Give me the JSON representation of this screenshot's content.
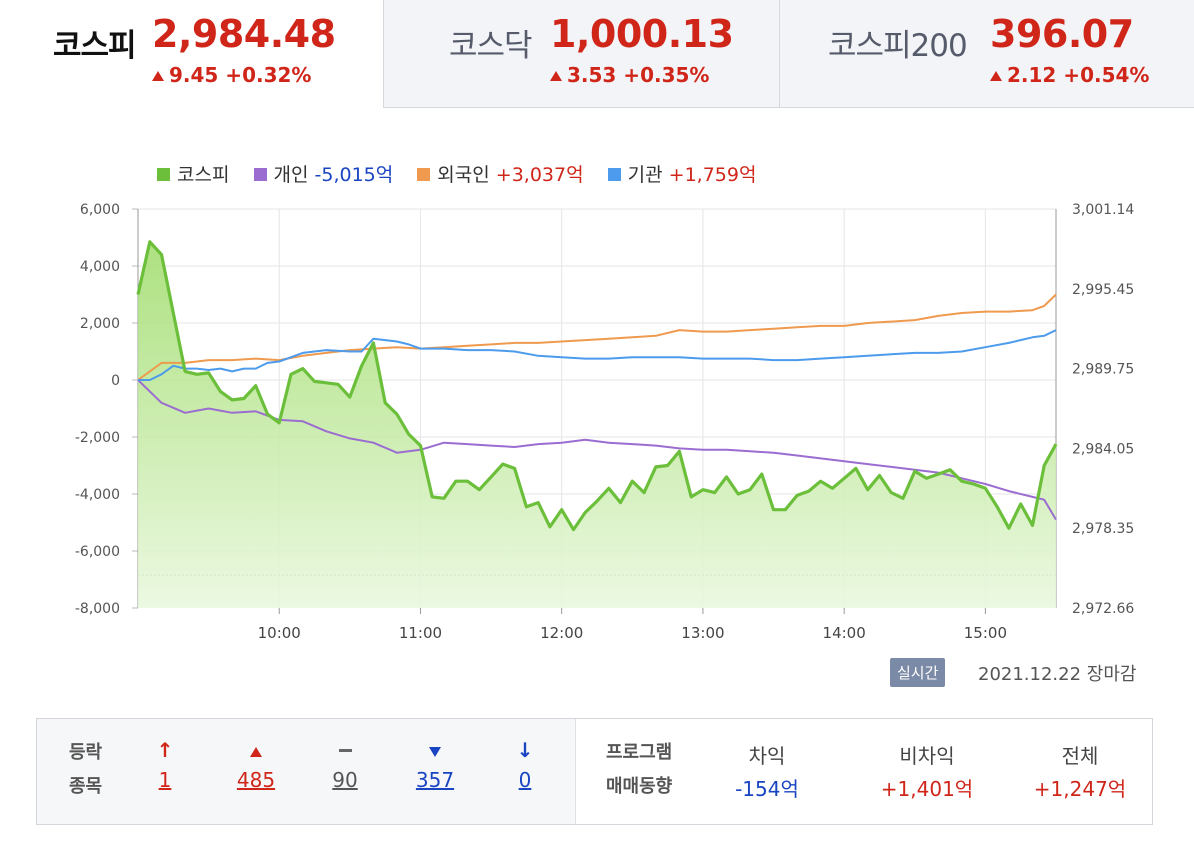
{
  "tabs": [
    {
      "name": "코스피",
      "value": "2,984.48",
      "change": "9.45 +0.32%"
    },
    {
      "name": "코스닥",
      "value": "1,000.13",
      "change": "3.53 +0.35%"
    },
    {
      "name": "코스피200",
      "value": "396.07",
      "change": "2.12 +0.54%"
    }
  ],
  "legend": [
    {
      "name": "코스피",
      "value": "",
      "color": "#6bbf3a"
    },
    {
      "name": "개인",
      "value": "-5,015억",
      "color": "#9b6dd1"
    },
    {
      "name": "외국인",
      "value": "+3,037억",
      "color": "#ef9a4e"
    },
    {
      "name": "기관",
      "value": "+1,759억",
      "color": "#4d9bec"
    }
  ],
  "chart_data": {
    "type": "line",
    "x_range": [
      "09:00",
      "15:30"
    ],
    "x_ticks": [
      "10:00",
      "11:00",
      "12:00",
      "13:00",
      "14:00",
      "15:00"
    ],
    "left_axis": {
      "ylim": [
        -8000,
        6000
      ],
      "ticks": [
        "6,000",
        "4,000",
        "2,000",
        "0",
        "-2,000",
        "-4,000",
        "-6,000",
        "-8,000"
      ]
    },
    "right_axis": {
      "ylim": [
        2972.66,
        3001.14
      ],
      "ticks": [
        "3,001.14",
        "2,995.45",
        "2,989.75",
        "2,984.05",
        "2,978.35",
        "2,972.66"
      ]
    },
    "reference_line_left": -6850,
    "series": [
      {
        "name": "코스피",
        "axis": "left",
        "color": "#6bbf3a",
        "fill": true,
        "x": [
          0,
          5,
          10,
          20,
          25,
          30,
          35,
          40,
          45,
          50,
          55,
          60,
          65,
          70,
          75,
          80,
          85,
          90,
          95,
          100,
          105,
          110,
          115,
          120,
          125,
          130,
          135,
          140,
          145,
          150,
          155,
          160,
          165,
          170,
          175,
          180,
          185,
          190,
          195,
          200,
          205,
          210,
          215,
          220,
          225,
          230,
          235,
          240,
          245,
          250,
          255,
          260,
          265,
          270,
          275,
          280,
          285,
          290,
          295,
          300,
          305,
          310,
          315,
          320,
          325,
          330,
          335,
          340,
          345,
          350,
          355,
          360,
          365,
          370,
          375,
          380,
          385,
          390
        ],
        "values": [
          3000,
          4850,
          4400,
          300,
          200,
          250,
          -400,
          -700,
          -650,
          -200,
          -1200,
          -1500,
          200,
          400,
          -50,
          -100,
          -150,
          -600,
          500,
          1300,
          -800,
          -1200,
          -1900,
          -2300,
          -4100,
          -4150,
          -3550,
          -3550,
          -3850,
          -3400,
          -2950,
          -3100,
          -4450,
          -4300,
          -5150,
          -4550,
          -5250,
          -4650,
          -4250,
          -3800,
          -4300,
          -3550,
          -3950,
          -3050,
          -3000,
          -2500,
          -4100,
          -3850,
          -3950,
          -3400,
          -4000,
          -3850,
          -3300,
          -4550,
          -4550,
          -4050,
          -3900,
          -3550,
          -3800,
          -3450,
          -3100,
          -3850,
          -3350,
          -3950,
          -4150,
          -3200,
          -3450,
          -3300,
          -3150,
          -3550,
          -3650,
          -3800,
          -4450,
          -5200,
          -4350,
          -5100,
          -3000,
          -2250
        ]
      },
      {
        "name": "개인",
        "axis": "left",
        "color": "#9b6dd1",
        "fill": false,
        "x": [
          0,
          10,
          20,
          30,
          40,
          50,
          60,
          70,
          80,
          90,
          100,
          110,
          120,
          130,
          140,
          150,
          160,
          170,
          180,
          190,
          200,
          210,
          220,
          230,
          240,
          250,
          260,
          270,
          280,
          290,
          300,
          310,
          320,
          330,
          340,
          350,
          360,
          370,
          380,
          385,
          390
        ],
        "values": [
          0,
          -800,
          -1150,
          -1000,
          -1150,
          -1100,
          -1400,
          -1450,
          -1800,
          -2050,
          -2200,
          -2550,
          -2450,
          -2200,
          -2250,
          -2300,
          -2350,
          -2250,
          -2200,
          -2100,
          -2200,
          -2250,
          -2300,
          -2400,
          -2450,
          -2450,
          -2500,
          -2550,
          -2650,
          -2750,
          -2850,
          -2950,
          -3050,
          -3150,
          -3250,
          -3450,
          -3650,
          -3900,
          -4100,
          -4200,
          -4900
        ]
      },
      {
        "name": "외국인",
        "axis": "left",
        "color": "#ef9a4e",
        "fill": false,
        "x": [
          0,
          10,
          20,
          30,
          40,
          50,
          60,
          70,
          80,
          90,
          100,
          110,
          120,
          130,
          140,
          150,
          160,
          170,
          180,
          190,
          200,
          210,
          220,
          230,
          240,
          250,
          260,
          270,
          280,
          290,
          300,
          310,
          320,
          330,
          340,
          350,
          360,
          370,
          380,
          385,
          390
        ],
        "values": [
          0,
          600,
          600,
          700,
          700,
          750,
          700,
          850,
          950,
          1050,
          1100,
          1150,
          1100,
          1150,
          1200,
          1250,
          1300,
          1300,
          1350,
          1400,
          1450,
          1500,
          1550,
          1750,
          1700,
          1700,
          1750,
          1800,
          1850,
          1900,
          1900,
          2000,
          2050,
          2100,
          2250,
          2350,
          2400,
          2400,
          2450,
          2600,
          3000
        ]
      },
      {
        "name": "기관",
        "axis": "left",
        "color": "#4d9bec",
        "fill": false,
        "x": [
          0,
          5,
          10,
          15,
          20,
          25,
          30,
          35,
          40,
          45,
          50,
          55,
          60,
          70,
          80,
          90,
          95,
          100,
          105,
          110,
          115,
          120,
          130,
          140,
          150,
          160,
          170,
          180,
          190,
          200,
          210,
          220,
          230,
          240,
          250,
          260,
          270,
          280,
          290,
          300,
          310,
          320,
          330,
          340,
          350,
          360,
          370,
          380,
          385,
          390
        ],
        "values": [
          0,
          0,
          200,
          500,
          400,
          400,
          350,
          400,
          300,
          400,
          400,
          600,
          650,
          950,
          1050,
          1000,
          1000,
          1450,
          1400,
          1350,
          1250,
          1100,
          1100,
          1050,
          1050,
          1000,
          850,
          800,
          750,
          750,
          800,
          800,
          800,
          750,
          750,
          750,
          700,
          700,
          750,
          800,
          850,
          900,
          950,
          950,
          1000,
          1150,
          1300,
          1500,
          1550,
          1750
        ]
      }
    ]
  },
  "status": {
    "badge": "실시간",
    "datetime": "2021.12.22 장마감"
  },
  "breadth": {
    "title_line1": "등락",
    "title_line2": "종목",
    "items": [
      {
        "icon": "upper-limit-arrow-icon",
        "count": "1"
      },
      {
        "icon": "rise-triangle-icon",
        "count": "485"
      },
      {
        "icon": "flat-dash-icon",
        "count": "90"
      },
      {
        "icon": "fall-triangle-icon",
        "count": "357"
      },
      {
        "icon": "lower-limit-arrow-icon",
        "count": "0"
      }
    ]
  },
  "program": {
    "title_line1": "프로그램",
    "title_line2": "매매동향",
    "columns": [
      {
        "label": "차익",
        "value": "-154",
        "unit": "억"
      },
      {
        "label": "비차익",
        "value": "+1,401",
        "unit": "억"
      },
      {
        "label": "전체",
        "value": "+1,247",
        "unit": "억"
      }
    ]
  }
}
